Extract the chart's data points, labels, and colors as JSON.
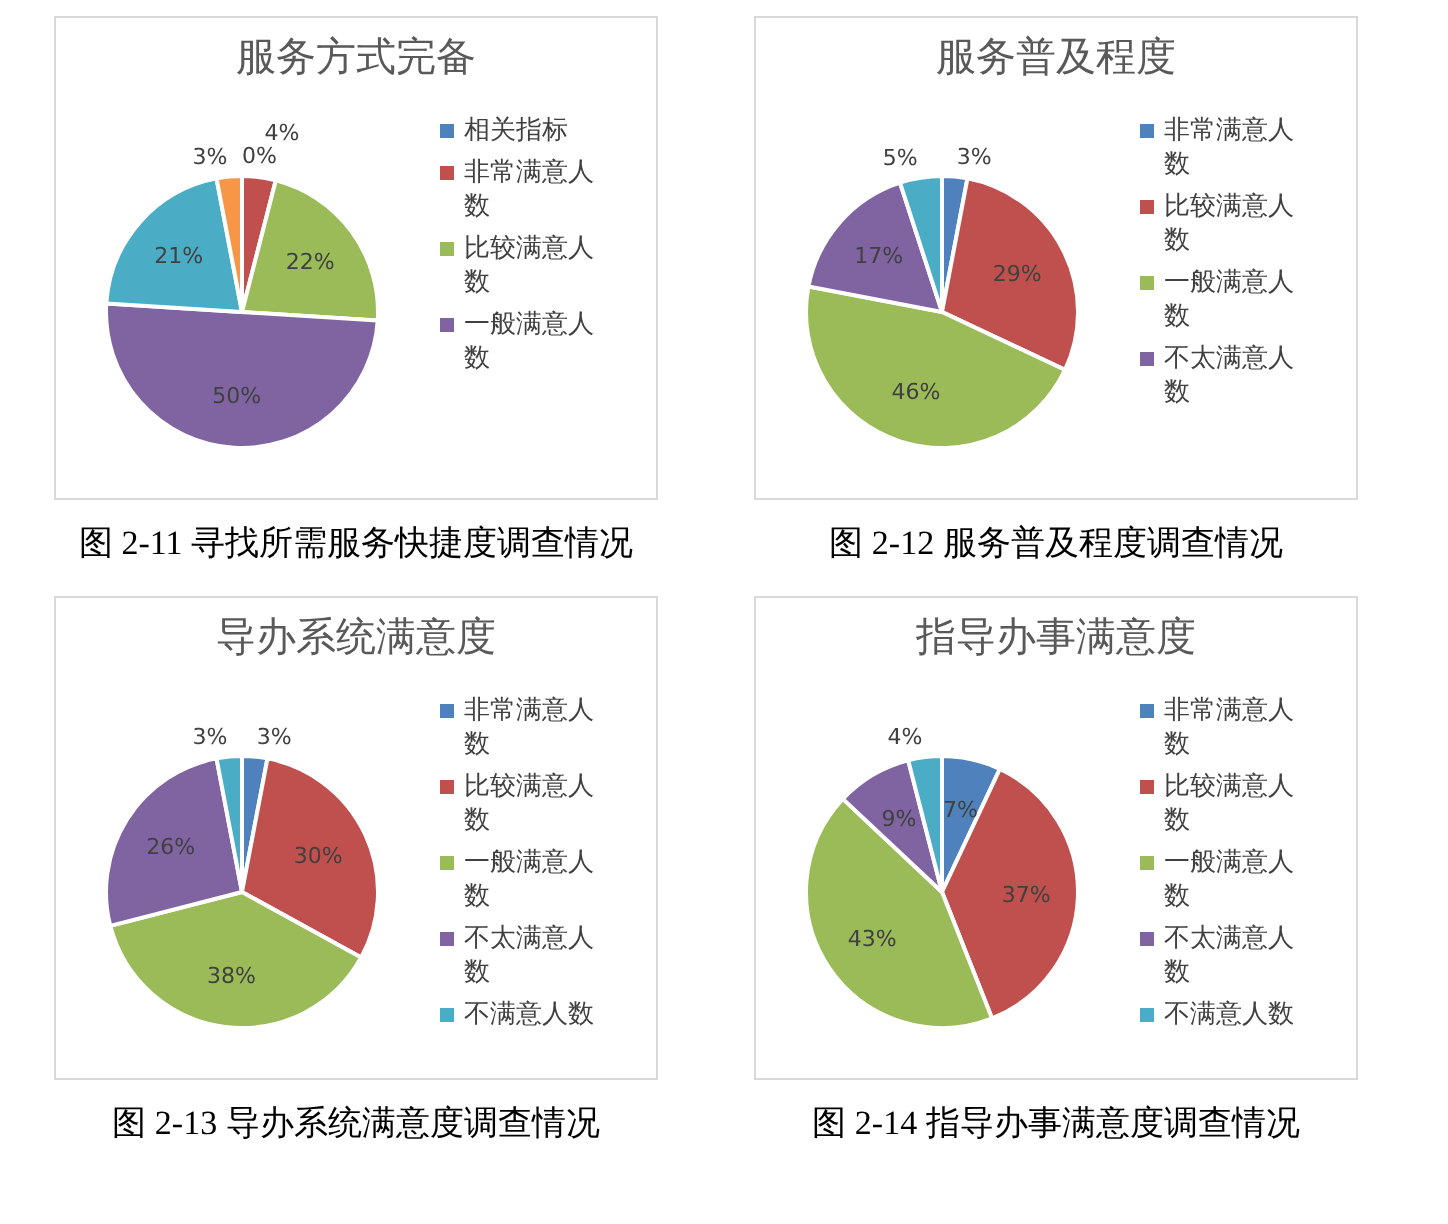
{
  "chart_data": [
    {
      "type": "pie",
      "title": "服务方式完备",
      "categories": [
        "相关指标",
        "非常满意人数",
        "比较满意人数",
        "一般满意人数",
        null,
        null
      ],
      "values": [
        0,
        4,
        22,
        50,
        21,
        3
      ],
      "value_labels": [
        "0%",
        "4%",
        "22%",
        "50%",
        "21%",
        "3%"
      ],
      "colors": [
        "#4f81bd",
        "#c0504d",
        "#9bbb59",
        "#8064a2",
        "#4bacc6",
        "#f79646"
      ],
      "legend": "right",
      "annotations": [
        "图 2-11 寻找所需服务快捷度调查情况"
      ]
    },
    {
      "type": "pie",
      "title": "服务普及程度",
      "categories": [
        "非常满意人数",
        "比较满意人数",
        "一般满意人数",
        "不太满意人数",
        null
      ],
      "values": [
        3,
        29,
        46,
        17,
        5
      ],
      "value_labels": [
        "3%",
        "29%",
        "46%",
        "17%",
        "5%"
      ],
      "colors": [
        "#4f81bd",
        "#c0504d",
        "#9bbb59",
        "#8064a2",
        "#4bacc6"
      ],
      "legend": "right",
      "annotations": [
        "图 2-12 服务普及程度调查情况"
      ]
    },
    {
      "type": "pie",
      "title": "导办系统满意度",
      "categories": [
        "非常满意人数",
        "比较满意人数",
        "一般满意人数",
        "不太满意人数",
        "不满意人数"
      ],
      "values": [
        3,
        30,
        38,
        26,
        3
      ],
      "value_labels": [
        "3%",
        "30%",
        "38%",
        "26%",
        "3%"
      ],
      "colors": [
        "#4f81bd",
        "#c0504d",
        "#9bbb59",
        "#8064a2",
        "#4bacc6"
      ],
      "legend": "right",
      "annotations": [
        "图 2-13 导办系统满意度调查情况"
      ]
    },
    {
      "type": "pie",
      "title": "指导办事满意度",
      "categories": [
        "非常满意人数",
        "比较满意人数",
        "一般满意人数",
        "不太满意人数",
        "不满意人数"
      ],
      "values": [
        7,
        37,
        43,
        9,
        4
      ],
      "value_labels": [
        "7%",
        "37%",
        "43%",
        "9%",
        "4%"
      ],
      "colors": [
        "#4f81bd",
        "#c0504d",
        "#9bbb59",
        "#8064a2",
        "#4bacc6"
      ],
      "legend": "right",
      "annotations": [
        "图 2-14 指导办事满意度调查情况"
      ]
    }
  ]
}
